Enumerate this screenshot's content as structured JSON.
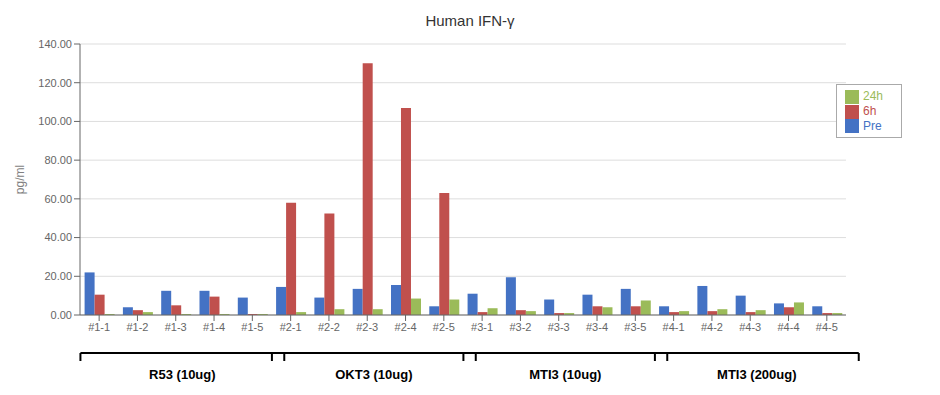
{
  "chart_data": {
    "type": "bar",
    "title": "Human IFN-γ",
    "ylabel": "pg/ml",
    "categories": [
      "#1-1",
      "#1-2",
      "#1-3",
      "#1-4",
      "#1-5",
      "#2-1",
      "#2-2",
      "#2-3",
      "#2-4",
      "#2-5",
      "#3-1",
      "#3-2",
      "#3-3",
      "#3-4",
      "#3-5",
      "#4-1",
      "#4-2",
      "#4-3",
      "#4-4",
      "#4-5"
    ],
    "groups": [
      {
        "label": "R53 (10ug)",
        "first": "#1-1",
        "last": "#1-5"
      },
      {
        "label": "OKT3 (10ug)",
        "first": "#2-1",
        "last": "#2-5"
      },
      {
        "label": "MTI3 (10ug)",
        "first": "#3-1",
        "last": "#3-5"
      },
      {
        "label": "MTI3 (200ug)",
        "first": "#4-1",
        "last": "#4-5"
      }
    ],
    "series": [
      {
        "name": "Pre",
        "color": "#4472C4",
        "values": [
          22.0,
          4.0,
          12.5,
          12.5,
          9.0,
          14.5,
          9.0,
          13.5,
          15.5,
          4.5,
          11.0,
          19.5,
          8.0,
          10.5,
          13.5,
          4.5,
          15.0,
          10.0,
          6.0,
          4.5
        ]
      },
      {
        "name": "6h",
        "color": "#C0504D",
        "values": [
          10.5,
          2.5,
          5.0,
          9.5,
          0.5,
          58.0,
          52.5,
          130.0,
          107.0,
          63.0,
          1.5,
          2.5,
          1.0,
          4.5,
          4.5,
          1.5,
          2.0,
          1.5,
          4.0,
          1.0
        ]
      },
      {
        "name": "24h",
        "color": "#9BBB59",
        "values": [
          0.5,
          1.5,
          0.5,
          0.5,
          0.5,
          1.5,
          3.0,
          3.0,
          8.5,
          8.0,
          3.5,
          2.0,
          1.0,
          4.0,
          7.5,
          2.0,
          3.0,
          2.5,
          6.5,
          1.0
        ]
      }
    ],
    "ylim": [
      0,
      140
    ],
    "yticks": [
      {
        "value": 0,
        "label": "0.00"
      },
      {
        "value": 20,
        "label": "20.00"
      },
      {
        "value": 40,
        "label": "40.00"
      },
      {
        "value": 60,
        "label": "60.00"
      },
      {
        "value": 80,
        "label": "80.00"
      },
      {
        "value": 100,
        "label": "100.00"
      },
      {
        "value": 120,
        "label": "120.00"
      },
      {
        "value": 140,
        "label": "140.00"
      }
    ],
    "grid": true,
    "legend": "upper right"
  }
}
